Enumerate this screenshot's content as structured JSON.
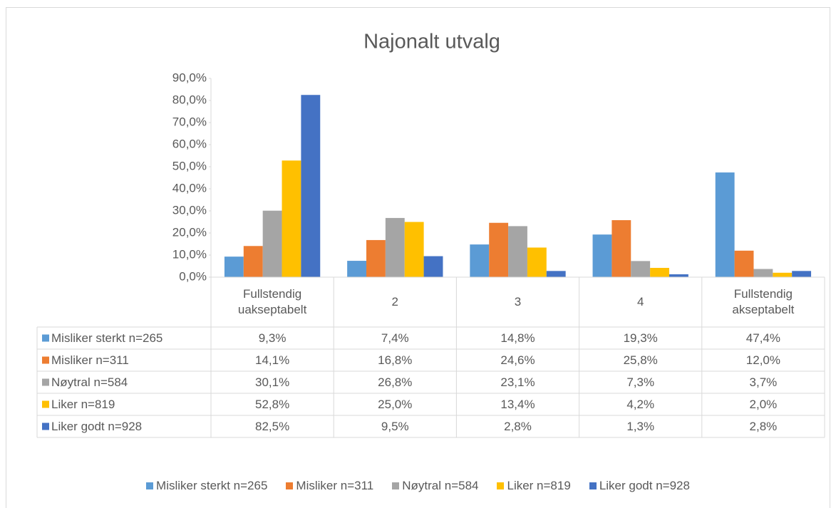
{
  "chart_data": {
    "type": "bar",
    "title": "Najonalt utvalg",
    "categories": [
      "Fullstendig uakseptabelt",
      "2",
      "3",
      "4",
      "Fullstendig akseptabelt"
    ],
    "series": [
      {
        "name": "Misliker sterkt n=265",
        "color": "#5b9bd5",
        "values": [
          9.3,
          7.4,
          14.8,
          19.3,
          47.4
        ],
        "value_labels": [
          "9,3%",
          "7,4%",
          "14,8%",
          "19,3%",
          "47,4%"
        ]
      },
      {
        "name": "Misliker n=311",
        "color": "#ed7d31",
        "values": [
          14.1,
          16.8,
          24.6,
          25.8,
          12.0
        ],
        "value_labels": [
          "14,1%",
          "16,8%",
          "24,6%",
          "25,8%",
          "12,0%"
        ]
      },
      {
        "name": "Nøytral n=584",
        "color": "#a5a5a5",
        "values": [
          30.1,
          26.8,
          23.1,
          7.3,
          3.7
        ],
        "value_labels": [
          "30,1%",
          "26,8%",
          "23,1%",
          "7,3%",
          "3,7%"
        ]
      },
      {
        "name": "Liker n=819",
        "color": "#ffc000",
        "values": [
          52.8,
          25.0,
          13.4,
          4.2,
          2.0
        ],
        "value_labels": [
          "52,8%",
          "25,0%",
          "13,4%",
          "4,2%",
          "2,0%"
        ]
      },
      {
        "name": "Liker godt n=928",
        "color": "#4472c4",
        "values": [
          82.5,
          9.5,
          2.8,
          1.3,
          2.8
        ],
        "value_labels": [
          "82,5%",
          "9,5%",
          "2,8%",
          "1,3%",
          "2,8%"
        ]
      }
    ],
    "ylim": [
      0,
      90
    ],
    "yticks": [
      {
        "value": 0,
        "label": "0,0%"
      },
      {
        "value": 10,
        "label": "10,0%"
      },
      {
        "value": 20,
        "label": "20,0%"
      },
      {
        "value": 30,
        "label": "30,0%"
      },
      {
        "value": 40,
        "label": "40,0%"
      },
      {
        "value": 50,
        "label": "50,0%"
      },
      {
        "value": 60,
        "label": "60,0%"
      },
      {
        "value": 70,
        "label": "70,0%"
      },
      {
        "value": 80,
        "label": "80,0%"
      },
      {
        "value": 90,
        "label": "90,0%"
      }
    ],
    "data_table": true,
    "legend": "bottom"
  }
}
